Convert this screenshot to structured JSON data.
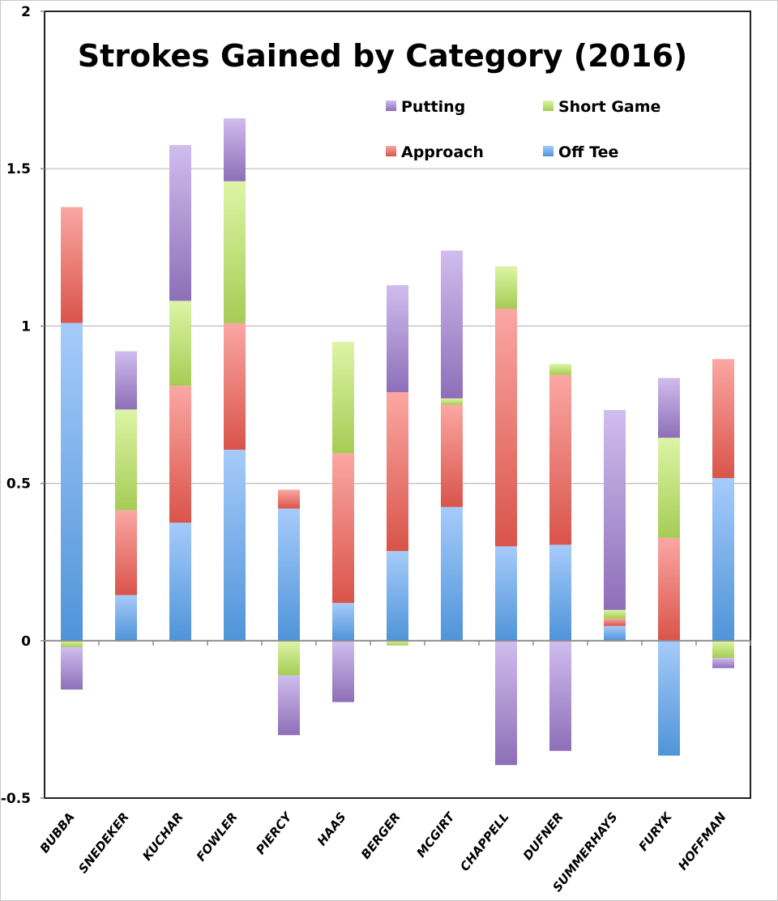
{
  "chart_data": {
    "type": "bar",
    "stacked": true,
    "title": "Strokes Gained by Category (2016)",
    "xlabel": "",
    "ylabel": "",
    "ylim": [
      -0.5,
      2
    ],
    "yticks": [
      -0.5,
      0,
      0.5,
      1,
      1.5,
      2
    ],
    "ytick_labels": [
      "-0.5",
      "0",
      "0.5",
      "1",
      "1.5",
      "2"
    ],
    "grid": true,
    "legend_position": "top-right",
    "categories": [
      "BUBBA",
      "SNEDEKER",
      "KUCHAR",
      "FOWLER",
      "PIERCY",
      "HAAS",
      "BERGER",
      "MCGIRT",
      "CHAPPELL",
      "DUFNER",
      "SUMMERHAYS",
      "FURYK",
      "HOFFMAN"
    ],
    "series": [
      {
        "name": "Off Tee",
        "color": "#4f94d9",
        "light": "#a6cbfa",
        "values": [
          1.01,
          0.145,
          0.375,
          0.607,
          0.42,
          0.12,
          0.285,
          0.425,
          0.3,
          0.305,
          0.047,
          -0.365,
          0.517
        ]
      },
      {
        "name": "Approach",
        "color": "#d9544a",
        "light": "#fba7a3",
        "values": [
          0.368,
          0.27,
          0.435,
          0.403,
          0.06,
          0.475,
          0.505,
          0.325,
          0.755,
          0.54,
          0.023,
          0.327,
          0.378
        ]
      },
      {
        "name": "Short Game",
        "color": "#a6cc55",
        "light": "#dcf5a6",
        "values": [
          -0.02,
          0.32,
          0.27,
          0.45,
          -0.11,
          0.355,
          -0.015,
          0.02,
          0.135,
          0.035,
          0.028,
          0.318,
          -0.055
        ]
      },
      {
        "name": "Putting",
        "color": "#8d6fb8",
        "light": "#d0bdee",
        "values": [
          -0.135,
          0.185,
          0.495,
          0.2,
          -0.19,
          -0.195,
          0.34,
          0.47,
          -0.395,
          -0.35,
          0.635,
          0.19,
          -0.032
        ]
      }
    ],
    "legend_order": [
      "Putting",
      "Short Game",
      "Approach",
      "Off Tee"
    ]
  }
}
